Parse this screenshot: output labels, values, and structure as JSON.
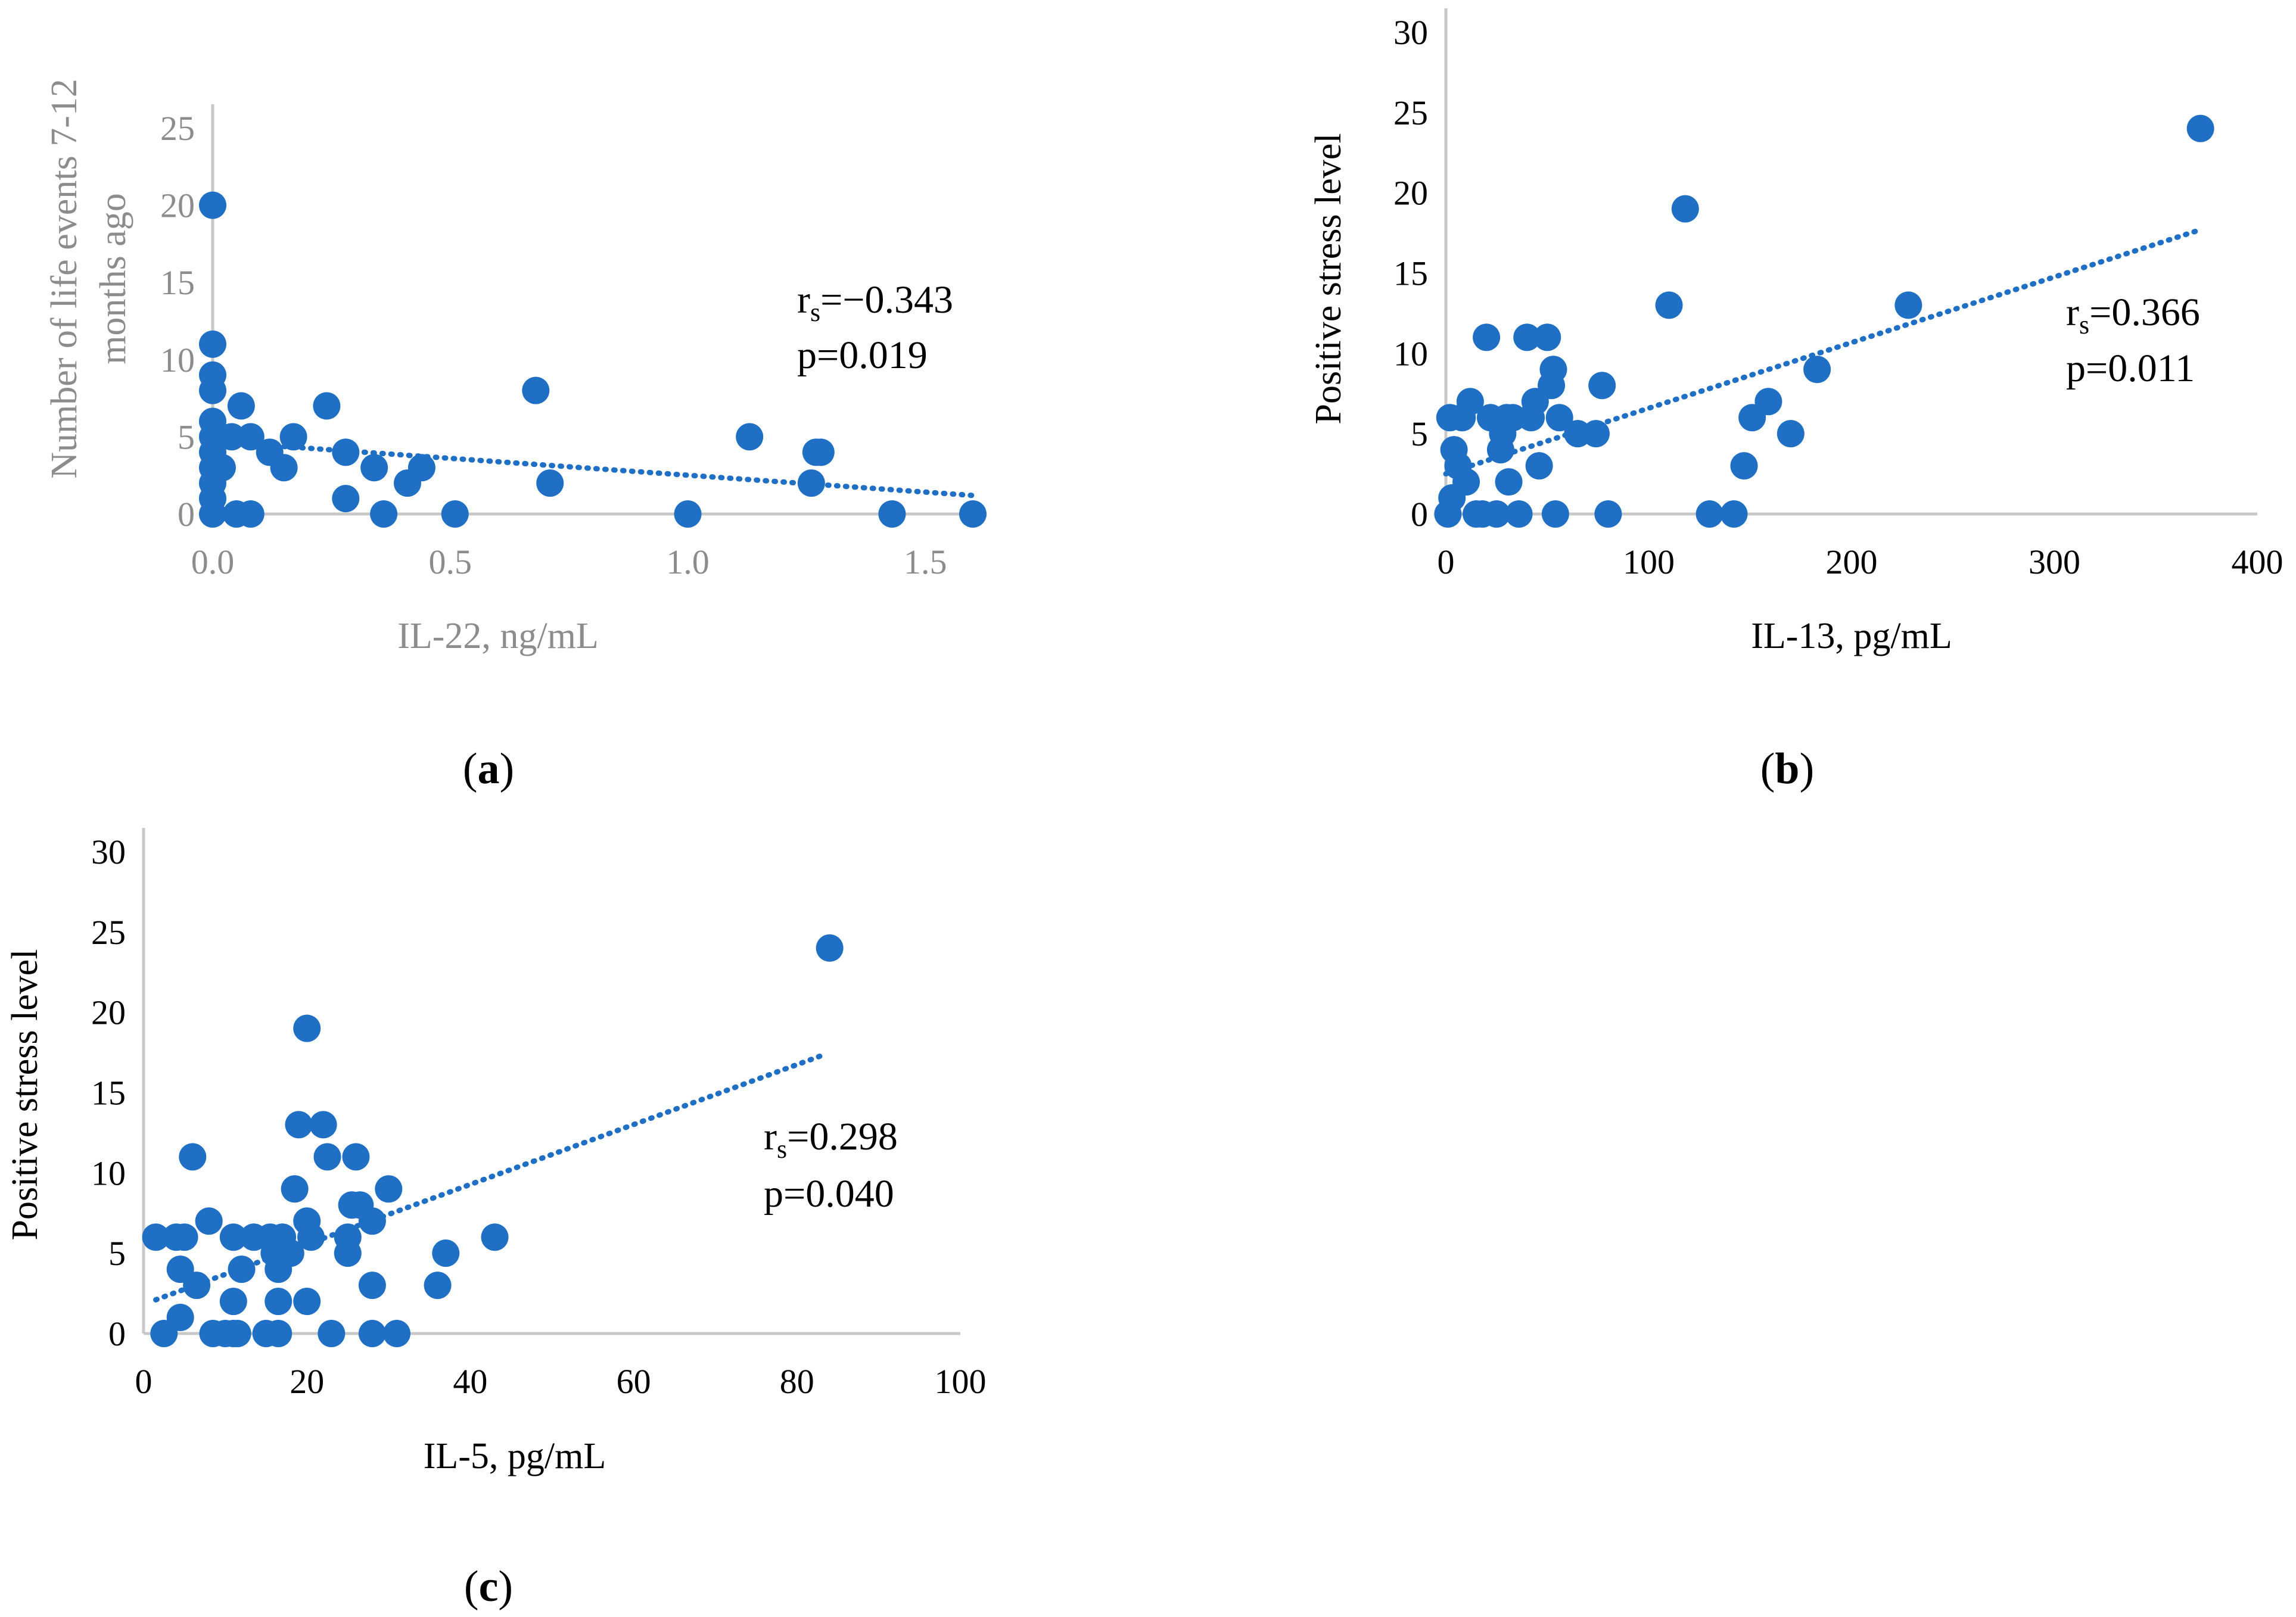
{
  "chart_data": [
    {
      "type": "scatter",
      "panel_label": "(a)",
      "xlabel": "IL-22, ng/mL",
      "ylabel": "Number of life events 7-12 months ago",
      "xlim": [
        0,
        1.6
      ],
      "ylim": [
        0,
        25
      ],
      "xticks": [
        0.0,
        0.5,
        1.0,
        1.5
      ],
      "xtick_labels": [
        "0.0",
        "0.5",
        "1.0",
        "1.5"
      ],
      "yticks": [
        0,
        5,
        10,
        15,
        20,
        25
      ],
      "ytick_labels": [
        "0",
        "5",
        "10",
        "15",
        "20",
        "25"
      ],
      "axis_color": "#8c8c8c",
      "point_color": "#1f6fc5",
      "points": [
        [
          0.0,
          20
        ],
        [
          0.0,
          11
        ],
        [
          0.0,
          9
        ],
        [
          0.0,
          8
        ],
        [
          0.0,
          6
        ],
        [
          0.0,
          5
        ],
        [
          0.0,
          4
        ],
        [
          0.0,
          3
        ],
        [
          0.0,
          2
        ],
        [
          0.0,
          1
        ],
        [
          0.0,
          0
        ],
        [
          0.02,
          3
        ],
        [
          0.04,
          5
        ],
        [
          0.05,
          0
        ],
        [
          0.06,
          7
        ],
        [
          0.08,
          5
        ],
        [
          0.08,
          0
        ],
        [
          0.12,
          4
        ],
        [
          0.15,
          3
        ],
        [
          0.17,
          5
        ],
        [
          0.24,
          7
        ],
        [
          0.28,
          4
        ],
        [
          0.28,
          1
        ],
        [
          0.34,
          3
        ],
        [
          0.36,
          0
        ],
        [
          0.41,
          2
        ],
        [
          0.44,
          3
        ],
        [
          0.51,
          0
        ],
        [
          0.68,
          8
        ],
        [
          0.71,
          2
        ],
        [
          1.0,
          0
        ],
        [
          1.13,
          5
        ],
        [
          1.26,
          2
        ],
        [
          1.27,
          4
        ],
        [
          1.28,
          4
        ],
        [
          1.43,
          0
        ],
        [
          1.6,
          0
        ]
      ],
      "trendline": [
        [
          0.0,
          4.7
        ],
        [
          1.6,
          1.2
        ]
      ],
      "stat_r_prefix": "r",
      "stat_r_sub": "s",
      "stat_r_value": "=−0.343",
      "stat_p": "p=0.019"
    },
    {
      "type": "scatter",
      "panel_label": "(b)",
      "xlabel": "IL-13, pg/mL",
      "ylabel": "Positive stress level",
      "xlim": [
        0,
        400
      ],
      "ylim": [
        0,
        30
      ],
      "xticks": [
        0,
        100,
        200,
        300,
        400
      ],
      "xtick_labels": [
        "0",
        "100",
        "200",
        "300",
        "400"
      ],
      "yticks": [
        0,
        5,
        10,
        15,
        20,
        25,
        30
      ],
      "ytick_labels": [
        "0",
        "5",
        "10",
        "15",
        "20",
        "25",
        "30"
      ],
      "axis_color": "#000000",
      "point_color": "#1f6fc5",
      "points": [
        [
          1,
          0
        ],
        [
          2,
          6
        ],
        [
          3,
          1
        ],
        [
          4,
          4
        ],
        [
          6,
          3
        ],
        [
          8,
          6
        ],
        [
          10,
          2
        ],
        [
          12,
          7
        ],
        [
          15,
          0
        ],
        [
          18,
          0
        ],
        [
          20,
          11
        ],
        [
          22,
          6
        ],
        [
          25,
          0
        ],
        [
          27,
          4
        ],
        [
          28,
          5
        ],
        [
          30,
          6
        ],
        [
          31,
          2
        ],
        [
          33,
          6
        ],
        [
          36,
          0
        ],
        [
          40,
          11
        ],
        [
          42,
          6
        ],
        [
          44,
          7
        ],
        [
          46,
          3
        ],
        [
          50,
          11
        ],
        [
          52,
          8
        ],
        [
          53,
          9
        ],
        [
          54,
          0
        ],
        [
          56,
          6
        ],
        [
          65,
          5
        ],
        [
          74,
          5
        ],
        [
          77,
          8
        ],
        [
          80,
          0
        ],
        [
          110,
          13
        ],
        [
          118,
          19
        ],
        [
          130,
          0
        ],
        [
          142,
          0
        ],
        [
          147,
          3
        ],
        [
          151,
          6
        ],
        [
          159,
          7
        ],
        [
          170,
          5
        ],
        [
          183,
          9
        ],
        [
          228,
          13
        ],
        [
          372,
          24
        ]
      ],
      "trendline": [
        [
          0,
          2.5
        ],
        [
          372,
          17.7
        ]
      ],
      "stat_r_prefix": "r",
      "stat_r_sub": "s",
      "stat_r_value": "=0.366",
      "stat_p": "p=0.011"
    },
    {
      "type": "scatter",
      "panel_label": "(c)",
      "xlabel": "IL-5, pg/mL",
      "ylabel": "Positive stress level",
      "xlim": [
        0,
        100
      ],
      "ylim": [
        0,
        30
      ],
      "xticks": [
        0,
        20,
        40,
        60,
        80,
        100
      ],
      "xtick_labels": [
        "0",
        "20",
        "40",
        "60",
        "80",
        "100"
      ],
      "yticks": [
        0,
        5,
        10,
        15,
        20,
        25,
        30
      ],
      "ytick_labels": [
        "0",
        "5",
        "10",
        "15",
        "20",
        "25",
        "30"
      ],
      "axis_color": "#000000",
      "point_color": "#1f6fc5",
      "points": [
        [
          1.5,
          6
        ],
        [
          2.5,
          0
        ],
        [
          4,
          6
        ],
        [
          4.5,
          4
        ],
        [
          4.5,
          1
        ],
        [
          5,
          6
        ],
        [
          6,
          11
        ],
        [
          6.5,
          3
        ],
        [
          8,
          7
        ],
        [
          8.5,
          0
        ],
        [
          10,
          0
        ],
        [
          11,
          2
        ],
        [
          11,
          0
        ],
        [
          11,
          6
        ],
        [
          11.5,
          0
        ],
        [
          12,
          4
        ],
        [
          13.5,
          6
        ],
        [
          15,
          0
        ],
        [
          15.5,
          6
        ],
        [
          16,
          5
        ],
        [
          16.5,
          0
        ],
        [
          16.5,
          2
        ],
        [
          16.5,
          4
        ],
        [
          17,
          6
        ],
        [
          18,
          5
        ],
        [
          18.5,
          9
        ],
        [
          19,
          13
        ],
        [
          20,
          7
        ],
        [
          20,
          2
        ],
        [
          20,
          19
        ],
        [
          20.5,
          6
        ],
        [
          22,
          13
        ],
        [
          22.5,
          11
        ],
        [
          23,
          0
        ],
        [
          25,
          6
        ],
        [
          25,
          5
        ],
        [
          25.5,
          8
        ],
        [
          26,
          11
        ],
        [
          26.5,
          8
        ],
        [
          28,
          7
        ],
        [
          28,
          3
        ],
        [
          28,
          0
        ],
        [
          30,
          9
        ],
        [
          31,
          0
        ],
        [
          36,
          3
        ],
        [
          37,
          5
        ],
        [
          43,
          6
        ],
        [
          84,
          24
        ]
      ],
      "trendline": [
        [
          1.5,
          2.1
        ],
        [
          83,
          17.3
        ]
      ],
      "stat_r_prefix": "r",
      "stat_r_sub": "s",
      "stat_r_value": "=0.298",
      "stat_p": "p=0.040"
    }
  ]
}
